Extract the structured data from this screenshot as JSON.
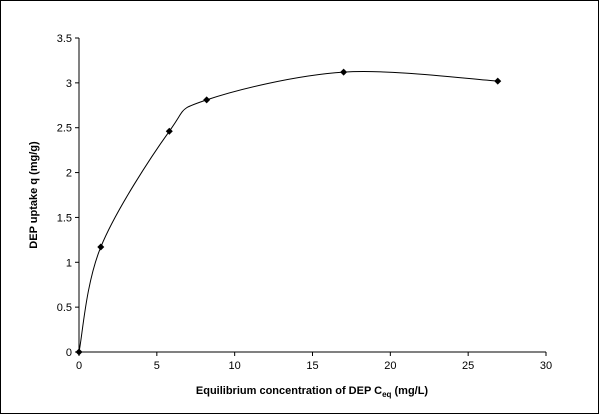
{
  "chart_data": {
    "type": "scatter-smooth",
    "xlabel": [
      "Equilibrium concentration of DEP C",
      "eq",
      " (mg/L)"
    ],
    "ylabel": "DEP uptake q (mg/g)",
    "x": [
      0,
      1.4,
      5.8,
      8.2,
      17.0,
      26.9
    ],
    "series": [
      {
        "color": "#000000",
        "values": [
          0,
          1.17,
          2.46,
          2.81,
          3.12,
          3.02
        ]
      }
    ],
    "xlim": [
      0,
      30
    ],
    "xticks": [
      0,
      5,
      10,
      15,
      20,
      25,
      30
    ],
    "ylim": [
      0,
      3.5
    ],
    "yticks": [
      0,
      0.5,
      1,
      1.5,
      2,
      2.5,
      3,
      3.5
    ],
    "grid": false
  }
}
